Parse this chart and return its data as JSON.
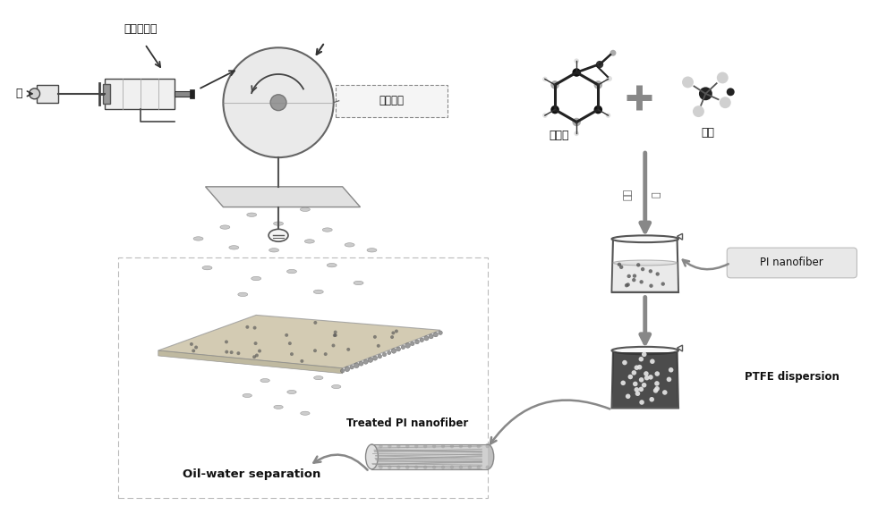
{
  "background_color": "#ffffff",
  "fig_width": 10.0,
  "fig_height": 5.85,
  "labels": {
    "polymer_solution": "聚合物溶液",
    "pump": "泵",
    "receiver": "接收装置",
    "dopamine": "多巴胺",
    "ammonia": "氨水",
    "oil_water": "Oil-water separation",
    "treated_pi": "Treated PI nanofiber",
    "pi_nanofiber": "PI nanofiber",
    "ptfe": "PTFE dispersion",
    "ethanol": "乙醇",
    "water": "水"
  },
  "xlim": [
    0,
    10
  ],
  "ylim": [
    0,
    5.85
  ]
}
